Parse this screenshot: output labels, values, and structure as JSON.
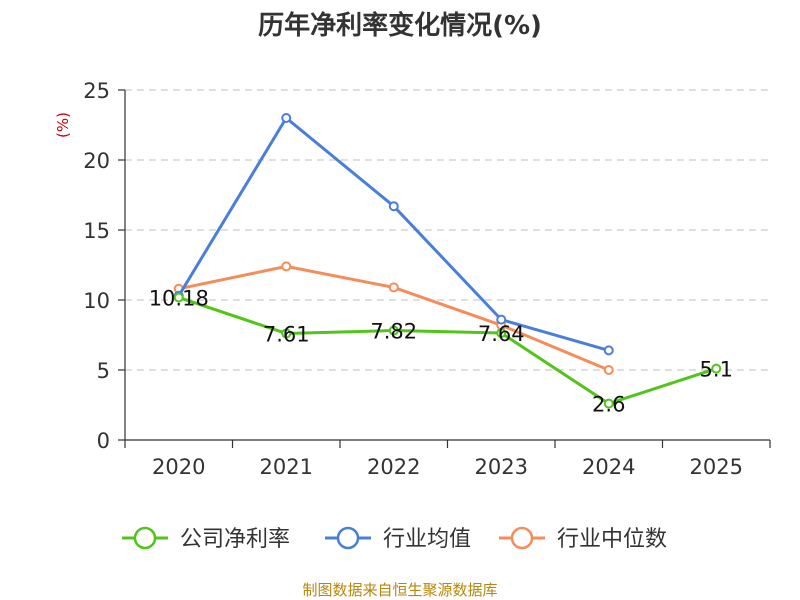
{
  "chart_data": {
    "type": "line",
    "title": "历年净利率变化情况(%)",
    "ylabel": "(%)",
    "categories": [
      "2020",
      "2021",
      "2022",
      "2023",
      "2024",
      "2025"
    ],
    "ylim": [
      0,
      25
    ],
    "yticks": [
      0,
      5,
      10,
      15,
      20,
      25
    ],
    "grid": true,
    "legend_position": "bottom",
    "series": [
      {
        "name": "公司净利率",
        "color": "#52c41a",
        "values": [
          10.18,
          7.61,
          7.82,
          7.64,
          2.6,
          5.1
        ],
        "labels": [
          "10.18",
          "7.61",
          "7.82",
          "7.64",
          "2.6",
          "5.1"
        ]
      },
      {
        "name": "行业均值",
        "color": "#4a7fd9",
        "values": [
          10.3,
          23.0,
          16.7,
          8.6,
          6.4,
          null
        ]
      },
      {
        "name": "行业中位数",
        "color": "#f58d5b",
        "values": [
          10.8,
          12.4,
          10.9,
          8.2,
          5.0,
          null
        ]
      }
    ]
  },
  "source": "制图数据来自恒生聚源数据库"
}
